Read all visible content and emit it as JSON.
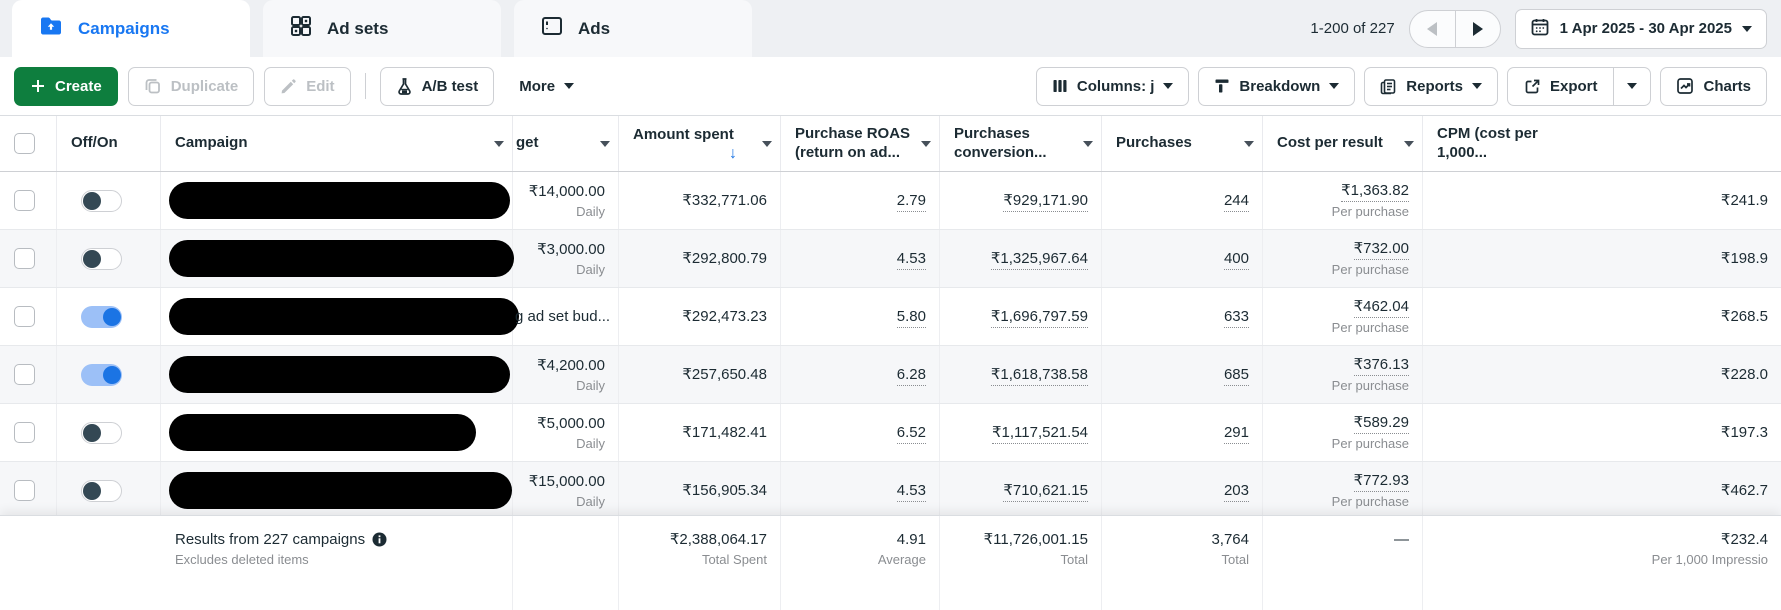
{
  "tabs": {
    "campaigns": "Campaigns",
    "ad_sets": "Ad sets",
    "ads": "Ads"
  },
  "meta": {
    "pagination": "1-200 of 227",
    "date_range": "1 Apr 2025 - 30 Apr 2025"
  },
  "toolbar": {
    "create": "Create",
    "duplicate": "Duplicate",
    "edit": "Edit",
    "ab_test": "A/B test",
    "more": "More",
    "columns": "Columns: j",
    "breakdown": "Breakdown",
    "reports": "Reports",
    "export": "Export",
    "charts": "Charts"
  },
  "table": {
    "headers": {
      "off_on": "Off/On",
      "campaign": "Campaign",
      "budget_truncated": "get",
      "amount_spent": "Amount spent",
      "roas_line1": "Purchase ROAS",
      "roas_line2": "(return on ad...",
      "conv_line1": "Purchases",
      "conv_line2": "conversion...",
      "purchases": "Purchases",
      "cost_per_result": "Cost per result",
      "cpm_line1": "CPM (cost per",
      "cpm_line2": "1,000..."
    },
    "rows": [
      {
        "on": false,
        "budget": "₹14,000.00",
        "budget_sub": "Daily",
        "spent": "₹332,771.06",
        "roas": "2.79",
        "conv": "₹929,171.90",
        "purchases": "244",
        "cost": "₹1,363.82",
        "cost_sub": "Per purchase",
        "cpm": "₹241.9"
      },
      {
        "on": false,
        "budget": "₹3,000.00",
        "budget_sub": "Daily",
        "spent": "₹292,800.79",
        "roas": "4.53",
        "conv": "₹1,325,967.64",
        "purchases": "400",
        "cost": "₹732.00",
        "cost_sub": "Per purchase",
        "cpm": "₹198.9"
      },
      {
        "on": true,
        "budget": "g ad set bud...",
        "budget_sub": "",
        "spent": "₹292,473.23",
        "roas": "5.80",
        "conv": "₹1,696,797.59",
        "purchases": "633",
        "cost": "₹462.04",
        "cost_sub": "Per purchase",
        "cpm": "₹268.5"
      },
      {
        "on": true,
        "budget": "₹4,200.00",
        "budget_sub": "Daily",
        "spent": "₹257,650.48",
        "roas": "6.28",
        "conv": "₹1,618,738.58",
        "purchases": "685",
        "cost": "₹376.13",
        "cost_sub": "Per purchase",
        "cpm": "₹228.0"
      },
      {
        "on": false,
        "budget": "₹5,000.00",
        "budget_sub": "Daily",
        "spent": "₹171,482.41",
        "roas": "6.52",
        "conv": "₹1,117,521.54",
        "purchases": "291",
        "cost": "₹589.29",
        "cost_sub": "Per purchase",
        "cpm": "₹197.3"
      },
      {
        "on": false,
        "budget": "₹15,000.00",
        "budget_sub": "Daily",
        "spent": "₹156,905.34",
        "roas": "4.53",
        "conv": "₹710,621.15",
        "purchases": "203",
        "cost": "₹772.93",
        "cost_sub": "Per purchase",
        "cpm": "₹462.7"
      }
    ],
    "footer": {
      "results": "Results from 227 campaigns",
      "excludes": "Excludes deleted items",
      "spent": "₹2,388,064.17",
      "spent_sub": "Total Spent",
      "roas": "4.91",
      "roas_sub": "Average",
      "conv": "₹11,726,001.15",
      "conv_sub": "Total",
      "purchases": "3,764",
      "purchases_sub": "Total",
      "cost": "—",
      "cpm": "₹232.4",
      "cpm_sub": "Per 1,000 Impressio"
    }
  },
  "colors": {
    "accent_blue": "#1877f2",
    "create_green": "#0e7e3e",
    "toggle_on_blue": "#1b74e4"
  }
}
